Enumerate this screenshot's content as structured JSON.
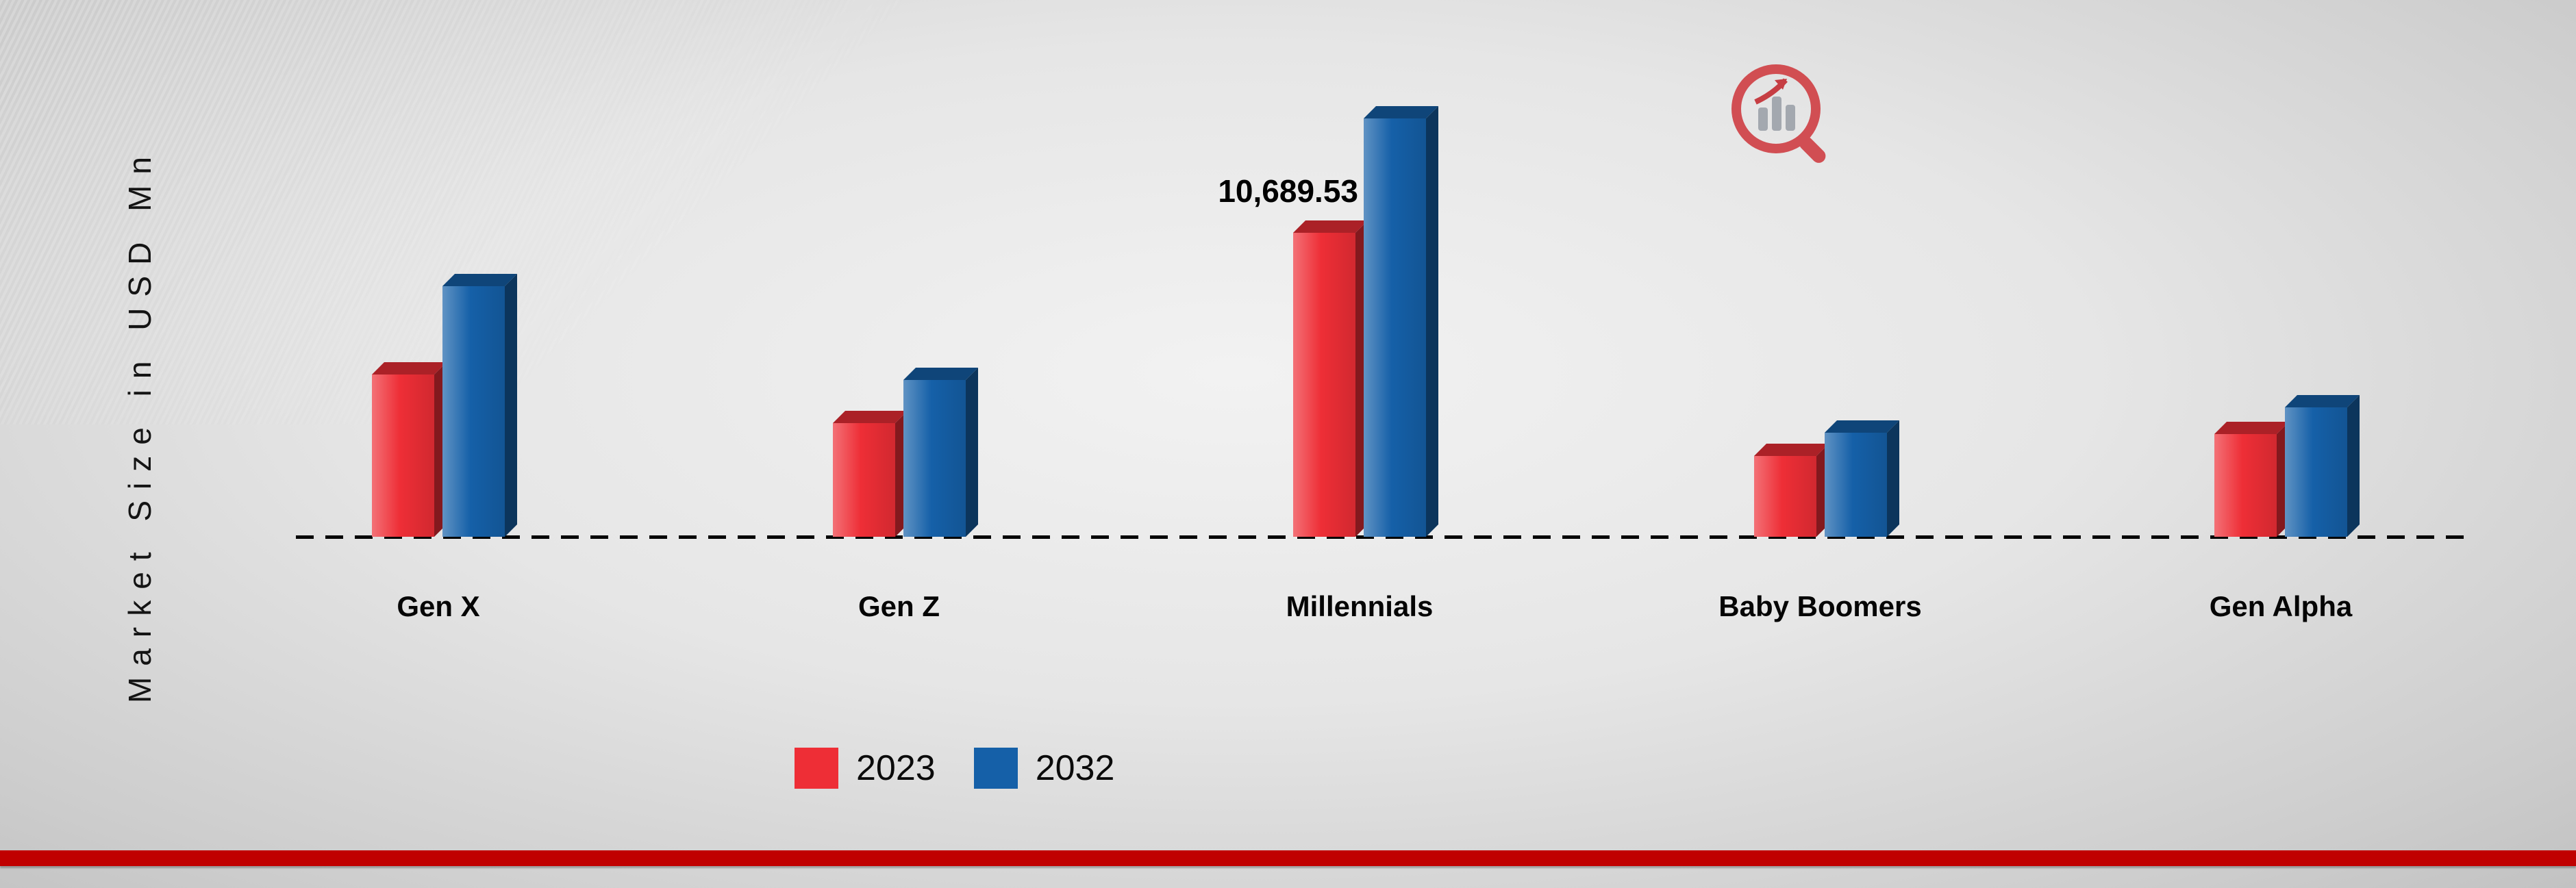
{
  "page": {
    "background_center": "#f2f2f2",
    "background_edge": "#c2c2c2",
    "footer_stripe_color": "#c00000"
  },
  "icons": {
    "logo": "magnifier-bar-chart-logo"
  },
  "chart_data": {
    "type": "bar",
    "title": "",
    "ylabel": "Market Size in USD Mn",
    "xlabel": "",
    "categories": [
      "Gen X",
      "Gen Z",
      "Millennials",
      "Baby Boomers",
      "Gen Alpha"
    ],
    "series": [
      {
        "name": "2023",
        "color": "#ee2e36",
        "values": [
          5700,
          4000,
          10689.53,
          2850,
          3600
        ]
      },
      {
        "name": "2032",
        "color": "#1560a8",
        "values": [
          8800,
          5500,
          14700,
          3650,
          4550
        ]
      }
    ],
    "ylim": [
      0,
      15500
    ],
    "grid": false,
    "legend_position": "bottom",
    "annotations": [
      {
        "series": "2023",
        "category": "Millennials",
        "text": "10,689.53"
      }
    ]
  },
  "legend": {
    "items": [
      {
        "label": "2023",
        "color": "#ee2e36"
      },
      {
        "label": "2032",
        "color": "#1560a8"
      }
    ]
  }
}
